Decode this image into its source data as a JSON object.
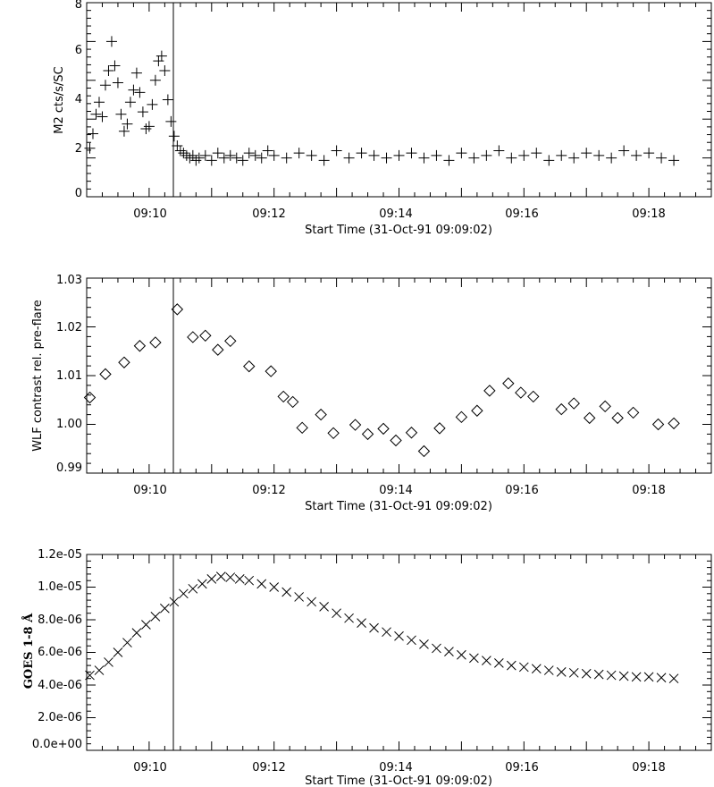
{
  "chart_data": [
    {
      "type": "scatter",
      "marker": "plus",
      "xlabel": "Start Time (31-Oct-91 09:09:02)",
      "ylabel": "M2 cts/s/SC",
      "x_tick_labels": [
        "09:10",
        "09:12",
        "09:14",
        "09:16",
        "09:18"
      ],
      "y_tick_labels": [
        "0",
        "2",
        "4",
        "6",
        "8"
      ],
      "x_unit": "minutes after 09:09:00",
      "xlim": [
        0,
        10
      ],
      "ylim": [
        0,
        8
      ],
      "flare_marker_x": 1.45,
      "grid": false,
      "x": [
        0.05,
        0.1,
        0.15,
        0.2,
        0.25,
        0.3,
        0.35,
        0.4,
        0.45,
        0.5,
        0.55,
        0.6,
        0.65,
        0.7,
        0.75,
        0.8,
        0.85,
        0.9,
        0.95,
        1.0,
        1.05,
        1.1,
        1.15,
        1.2,
        1.25,
        1.3,
        1.35,
        1.4,
        1.45,
        1.5,
        1.55,
        1.6,
        1.65,
        1.7,
        1.75,
        1.8,
        1.9,
        2.0,
        2.1,
        2.2,
        2.3,
        2.4,
        2.5,
        2.6,
        2.7,
        2.8,
        2.9,
        3.0,
        3.2,
        3.4,
        3.6,
        3.8,
        4.0,
        4.2,
        4.4,
        4.6,
        4.8,
        5.0,
        5.2,
        5.4,
        5.6,
        5.8,
        6.0,
        6.2,
        6.4,
        6.6,
        6.8,
        7.0,
        7.2,
        7.4,
        7.6,
        7.8,
        8.0,
        8.2,
        8.4,
        8.6,
        8.8,
        9.0,
        9.2,
        9.4
      ],
      "y": [
        2.0,
        2.6,
        3.4,
        3.9,
        3.3,
        4.6,
        5.2,
        6.4,
        5.4,
        4.7,
        3.4,
        2.7,
        3.0,
        3.9,
        4.4,
        5.1,
        4.3,
        3.5,
        2.8,
        2.9,
        3.8,
        4.8,
        5.6,
        5.8,
        5.2,
        4.0,
        3.1,
        2.5,
        2.1,
        1.9,
        1.8,
        1.7,
        1.6,
        1.7,
        1.5,
        1.6,
        1.7,
        1.5,
        1.8,
        1.6,
        1.7,
        1.6,
        1.5,
        1.8,
        1.7,
        1.6,
        1.9,
        1.7,
        1.6,
        1.8,
        1.7,
        1.5,
        1.9,
        1.6,
        1.8,
        1.7,
        1.6,
        1.7,
        1.8,
        1.6,
        1.7,
        1.5,
        1.8,
        1.6,
        1.7,
        1.9,
        1.6,
        1.7,
        1.8,
        1.5,
        1.7,
        1.6,
        1.8,
        1.7,
        1.6,
        1.9,
        1.7,
        1.8,
        1.6,
        1.5
      ]
    },
    {
      "type": "scatter",
      "marker": "diamond",
      "xlabel": "Start Time (31-Oct-91 09:09:02)",
      "ylabel": "WLF contrast rel. pre-flare",
      "x_tick_labels": [
        "09:10",
        "09:12",
        "09:14",
        "09:16",
        "09:18"
      ],
      "y_tick_labels": [
        "0.99",
        "1.00",
        "1.01",
        "1.02",
        "1.03"
      ],
      "x_unit": "minutes after 09:09:00",
      "xlim": [
        0,
        10
      ],
      "ylim": [
        0.99,
        1.03
      ],
      "flare_marker_x": 1.45,
      "grid": false,
      "x": [
        0.05,
        0.3,
        0.6,
        0.85,
        1.1,
        1.45,
        1.7,
        1.9,
        2.1,
        2.3,
        2.6,
        2.95,
        3.15,
        3.3,
        3.45,
        3.75,
        3.95,
        4.3,
        4.5,
        4.75,
        4.95,
        5.2,
        5.4,
        5.65,
        6.0,
        6.25,
        6.45,
        6.75,
        6.95,
        7.15,
        7.6,
        7.8,
        8.05,
        8.3,
        8.5,
        8.75,
        9.15,
        9.4
      ],
      "y": [
        1.0055,
        1.0103,
        1.0127,
        1.0161,
        1.0168,
        1.0236,
        1.0179,
        1.0182,
        1.0153,
        1.0171,
        1.0119,
        1.0109,
        1.0057,
        1.0046,
        0.9993,
        1.002,
        0.9982,
        0.9999,
        0.998,
        0.9991,
        0.9967,
        0.9983,
        0.9945,
        0.9992,
        1.0015,
        1.0028,
        1.0069,
        1.0084,
        1.0065,
        1.0057,
        1.0031,
        1.0043,
        1.0013,
        1.0037,
        1.0013,
        1.0024,
        1.0,
        1.0002
      ]
    },
    {
      "type": "scatter",
      "marker": "x",
      "xlabel": "Start Time (31-Oct-91 09:09:02)",
      "ylabel": "GOES 1-8 Å",
      "x_tick_labels": [
        "09:10",
        "09:12",
        "09:14",
        "09:16",
        "09:18"
      ],
      "y_tick_labels": [
        "0.0e+00",
        "2.0e-06",
        "4.0e-06",
        "6.0e-06",
        "8.0e-06",
        "1.0e-05",
        "1.2e-05"
      ],
      "x_unit": "minutes after 09:09:00",
      "xlim": [
        0,
        10
      ],
      "ylim": [
        0,
        1.2e-05
      ],
      "flare_marker_x": 1.45,
      "grid": false,
      "x": [
        0.05,
        0.2,
        0.35,
        0.5,
        0.65,
        0.8,
        0.95,
        1.1,
        1.25,
        1.4,
        1.55,
        1.7,
        1.85,
        2.0,
        2.15,
        2.3,
        2.45,
        2.6,
        2.8,
        3.0,
        3.2,
        3.4,
        3.6,
        3.8,
        4.0,
        4.2,
        4.4,
        4.6,
        4.8,
        5.0,
        5.2,
        5.4,
        5.6,
        5.8,
        6.0,
        6.2,
        6.4,
        6.6,
        6.8,
        7.0,
        7.2,
        7.4,
        7.6,
        7.8,
        8.0,
        8.2,
        8.4,
        8.6,
        8.8,
        9.0,
        9.2,
        9.4
      ],
      "y": [
        4.6e-06,
        4.9e-06,
        5.4e-06,
        6e-06,
        6.6e-06,
        7.2e-06,
        7.7e-06,
        8.2e-06,
        8.7e-06,
        9.1e-06,
        9.6e-06,
        9.9e-06,
        1.02e-05,
        1.05e-05,
        1.065e-05,
        1.06e-05,
        1.05e-05,
        1.04e-05,
        1.02e-05,
        1e-05,
        9.7e-06,
        9.4e-06,
        9.1e-06,
        8.8e-06,
        8.4e-06,
        8.1e-06,
        7.8e-06,
        7.5e-06,
        7.25e-06,
        7e-06,
        6.75e-06,
        6.5e-06,
        6.25e-06,
        6.05e-06,
        5.85e-06,
        5.65e-06,
        5.5e-06,
        5.35e-06,
        5.2e-06,
        5.1e-06,
        5e-06,
        4.9e-06,
        4.8e-06,
        4.75e-06,
        4.7e-06,
        4.65e-06,
        4.6e-06,
        4.55e-06,
        4.5e-06,
        4.5e-06,
        4.45e-06,
        4.4e-06
      ]
    }
  ]
}
